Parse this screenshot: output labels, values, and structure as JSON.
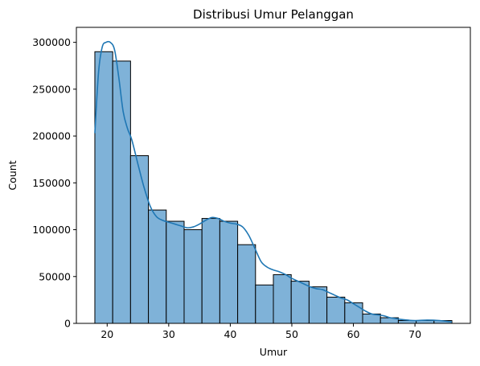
{
  "chart_data": {
    "type": "bar",
    "subtype": "histogram_with_kde",
    "title": "Distribusi Umur Pelanggan",
    "xlabel": "Umur",
    "ylabel": "Count",
    "xlim": [
      15,
      79
    ],
    "ylim": [
      0,
      316000
    ],
    "xticks": [
      20,
      30,
      40,
      50,
      60,
      70
    ],
    "yticks": [
      0,
      50000,
      100000,
      150000,
      200000,
      250000,
      300000
    ],
    "bin_edges": [
      18,
      20.9,
      23.8,
      26.7,
      29.6,
      32.5,
      35.4,
      38.3,
      41.2,
      44.1,
      47.0,
      49.9,
      52.8,
      55.7,
      58.6,
      61.5,
      64.4,
      67.3,
      70.2,
      73.1,
      76.0
    ],
    "counts": [
      290000,
      280000,
      179000,
      121000,
      109000,
      100000,
      112000,
      109000,
      84000,
      41000,
      52000,
      45000,
      39000,
      28000,
      22000,
      10000,
      6000,
      3000,
      3000,
      3000
    ],
    "kde": {
      "x": [
        18,
        18.6,
        19.2,
        19.8,
        20.5,
        21.2,
        21.9,
        22.6,
        23.3,
        24.0,
        25.0,
        26.0,
        27.0,
        28.0,
        29.0,
        30.0,
        31.0,
        32.0,
        33.0,
        34.0,
        35.0,
        36.0,
        37.0,
        38.0,
        39.0,
        40.0,
        41.0,
        42.0,
        43.0,
        44.0,
        45.0,
        46.0,
        47.0,
        48.0,
        49.0,
        50.0,
        51.0,
        52.0,
        53.0,
        54.0,
        55.0,
        56.0,
        57.0,
        58.0,
        59.0,
        60.0,
        61.0,
        62.0,
        63.0,
        64.0,
        65.0,
        66.0,
        67.0,
        68.0,
        70.0,
        72.0,
        74.0,
        76.0
      ],
      "y": [
        203000,
        268000,
        295000,
        300000,
        300000,
        292000,
        262000,
        226000,
        208000,
        196000,
        170000,
        145000,
        125000,
        114000,
        110000,
        108000,
        106000,
        104000,
        102000,
        103000,
        106000,
        110000,
        113000,
        112000,
        109000,
        107000,
        106000,
        103000,
        94000,
        80000,
        66000,
        60000,
        57000,
        55000,
        52000,
        48000,
        45000,
        42000,
        39000,
        37000,
        36000,
        33000,
        30000,
        27000,
        25000,
        21000,
        17000,
        13000,
        10000,
        9000,
        8000,
        6000,
        5000,
        4000,
        3000,
        3500,
        3000,
        1500
      ]
    },
    "bar_color": "#7fb2d8",
    "line_color": "#1f77b4",
    "grid": false,
    "legend": "none"
  }
}
